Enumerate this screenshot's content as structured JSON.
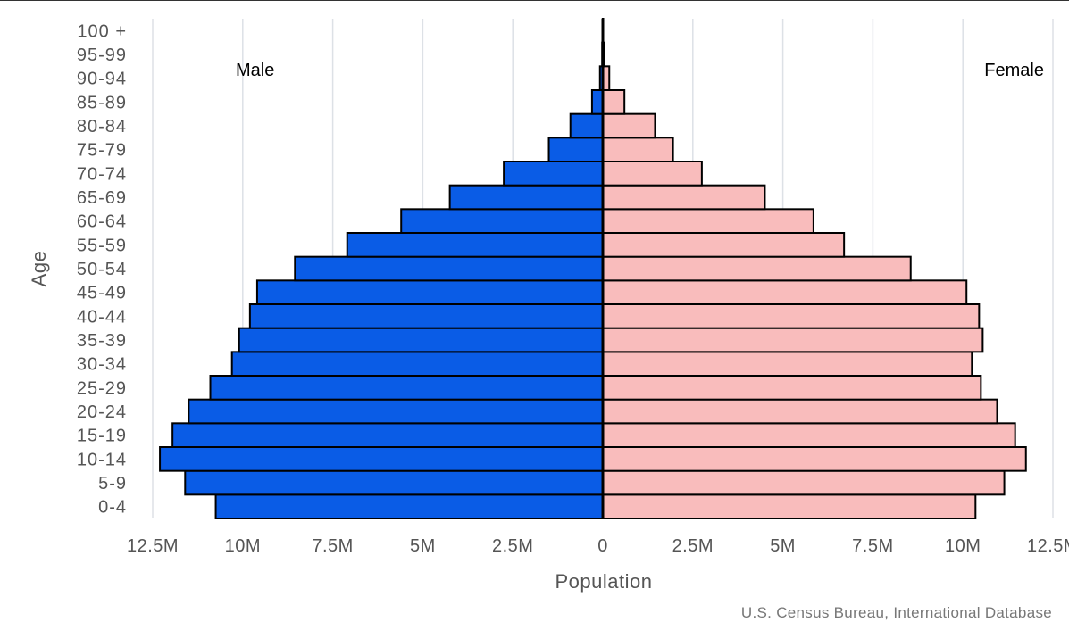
{
  "chart_data": {
    "type": "bar",
    "orientation": "horizontal",
    "subtype": "population-pyramid",
    "categories": [
      "0-4",
      "5-9",
      "10-14",
      "15-19",
      "20-24",
      "25-29",
      "30-34",
      "35-39",
      "40-44",
      "45-49",
      "50-54",
      "55-59",
      "60-64",
      "65-69",
      "70-74",
      "75-79",
      "80-84",
      "85-89",
      "90-94",
      "95-99",
      "100 +"
    ],
    "series": [
      {
        "name": "Male",
        "color": "#0a5ce6",
        "side": "left",
        "values": [
          10.75,
          11.6,
          12.3,
          11.95,
          11.5,
          10.9,
          10.3,
          10.1,
          9.8,
          9.6,
          8.55,
          7.1,
          5.6,
          4.25,
          2.75,
          1.5,
          0.9,
          0.3,
          0.08,
          0.02,
          0.005
        ]
      },
      {
        "name": "Female",
        "color": "#f9bcbc",
        "side": "right",
        "values": [
          10.35,
          11.15,
          11.75,
          11.45,
          10.95,
          10.5,
          10.25,
          10.55,
          10.45,
          10.1,
          8.55,
          6.7,
          5.85,
          4.5,
          2.75,
          1.95,
          1.45,
          0.6,
          0.18,
          0.03,
          0.008
        ]
      }
    ],
    "x_ticks": [
      {
        "value": -12.5,
        "label": "12.5M"
      },
      {
        "value": -10,
        "label": "10M"
      },
      {
        "value": -7.5,
        "label": "7.5M"
      },
      {
        "value": -5,
        "label": "5M"
      },
      {
        "value": -2.5,
        "label": "2.5M"
      },
      {
        "value": 0,
        "label": "0"
      },
      {
        "value": 2.5,
        "label": "2.5M"
      },
      {
        "value": 5,
        "label": "5M"
      },
      {
        "value": 7.5,
        "label": "7.5M"
      },
      {
        "value": 10,
        "label": "10M"
      },
      {
        "value": 12.5,
        "label": "12.5M"
      }
    ],
    "xlim": [
      -12.5,
      12.5
    ],
    "unit": "millions",
    "xlabel": "Population",
    "ylabel": "Age",
    "grid": true,
    "legend": {
      "left_label": "Male",
      "right_label": "Female",
      "placement": "top inside plot"
    },
    "source": "U.S. Census Bureau, International Database"
  }
}
